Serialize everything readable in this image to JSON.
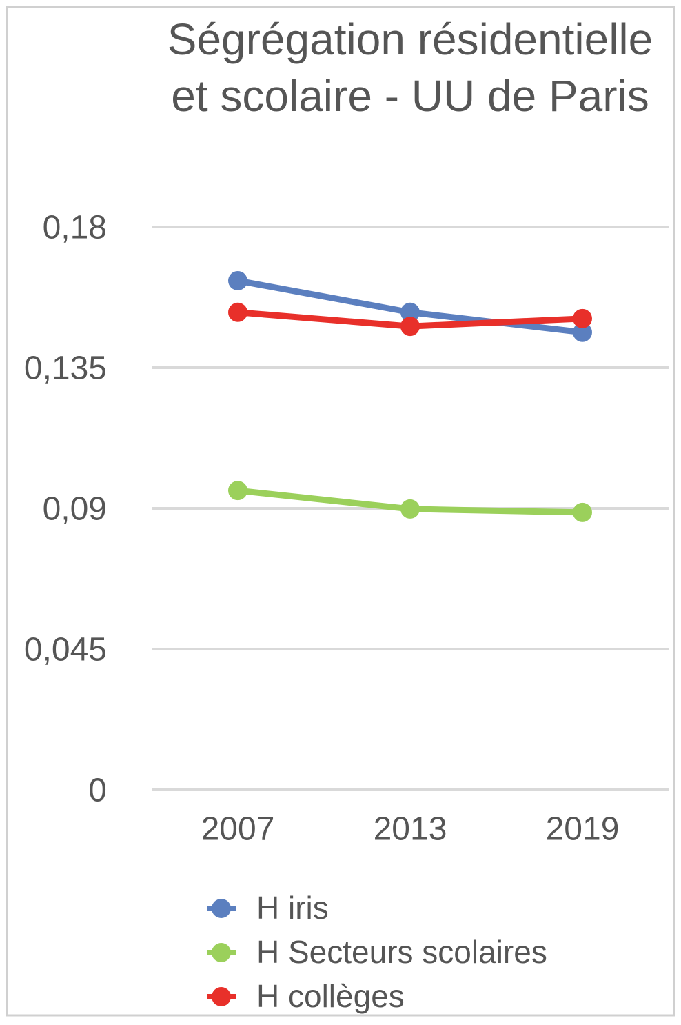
{
  "chart_data": {
    "type": "line",
    "title": "Ségrégation résidentielle et scolaire - UU de Paris",
    "categories": [
      "2007",
      "2013",
      "2019"
    ],
    "series": [
      {
        "name": "H iris",
        "color": "#5b7fbf",
        "values": [
          0.1628,
          0.1527,
          0.1463
        ]
      },
      {
        "name": "H Secteurs scolaires",
        "color": "#9bd05b",
        "values": [
          0.0957,
          0.0898,
          0.0887
        ]
      },
      {
        "name": "H collèges",
        "color": "#e8302a",
        "values": [
          0.1527,
          0.1482,
          0.1507
        ]
      }
    ],
    "ylim": [
      0,
      0.18
    ],
    "yticks": [
      0,
      {
        "value": 0.045,
        "label": "0,045"
      },
      {
        "value": 0.09,
        "label": "0,09"
      },
      {
        "value": 0.135,
        "label": "0,135"
      },
      {
        "value": 0.18,
        "label": "0,18"
      }
    ],
    "grid": true,
    "legend": "bottom"
  }
}
